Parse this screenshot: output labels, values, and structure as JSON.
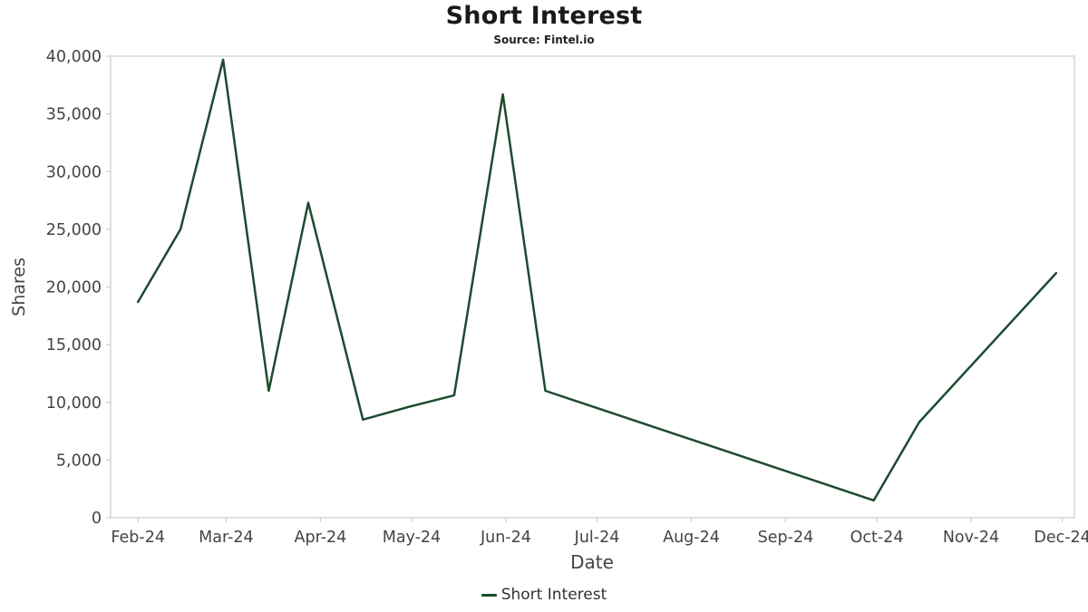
{
  "header": {
    "title": "Short Interest",
    "subtitle": "Source: Fintel.io"
  },
  "axes": {
    "x_label": "Date",
    "y_label": "Shares"
  },
  "legend": {
    "items": [
      {
        "label": "Short Interest",
        "color": "#1c4b2e"
      }
    ]
  },
  "colors": {
    "line": "#1c4b2e",
    "axis_text": "#444444",
    "border": "#cccccc",
    "title_text": "#1a1a1a"
  },
  "chart_data": {
    "type": "line",
    "title": "Short Interest",
    "subtitle": "Source: Fintel.io",
    "xlabel": "Date",
    "ylabel": "Shares",
    "ylim": [
      0,
      40000
    ],
    "grid": false,
    "legend_position": "bottom",
    "y_ticks": [
      0,
      5000,
      10000,
      15000,
      20000,
      25000,
      30000,
      35000,
      40000
    ],
    "x_ticks": [
      {
        "date": "2024-02-01",
        "label": "Feb-24"
      },
      {
        "date": "2024-03-01",
        "label": "Mar-24"
      },
      {
        "date": "2024-04-01",
        "label": "Apr-24"
      },
      {
        "date": "2024-05-01",
        "label": "May-24"
      },
      {
        "date": "2024-06-01",
        "label": "Jun-24"
      },
      {
        "date": "2024-07-01",
        "label": "Jul-24"
      },
      {
        "date": "2024-08-01",
        "label": "Aug-24"
      },
      {
        "date": "2024-09-01",
        "label": "Sep-24"
      },
      {
        "date": "2024-10-01",
        "label": "Oct-24"
      },
      {
        "date": "2024-11-01",
        "label": "Nov-24"
      },
      {
        "date": "2024-12-01",
        "label": "Dec-24"
      }
    ],
    "series": [
      {
        "name": "Short Interest",
        "color": "#1c4b2e",
        "points": [
          {
            "date": "2024-02-01",
            "value": 18700
          },
          {
            "date": "2024-02-15",
            "value": 25000
          },
          {
            "date": "2024-02-29",
            "value": 39700
          },
          {
            "date": "2024-03-15",
            "value": 11000
          },
          {
            "date": "2024-03-28",
            "value": 27300
          },
          {
            "date": "2024-04-15",
            "value": 8500
          },
          {
            "date": "2024-04-30",
            "value": 9600
          },
          {
            "date": "2024-05-15",
            "value": 10600
          },
          {
            "date": "2024-05-31",
            "value": 36700
          },
          {
            "date": "2024-06-14",
            "value": 11000
          },
          {
            "date": "2024-09-30",
            "value": 1500
          },
          {
            "date": "2024-10-15",
            "value": 8300
          },
          {
            "date": "2024-11-29",
            "value": 21200
          }
        ]
      }
    ]
  }
}
